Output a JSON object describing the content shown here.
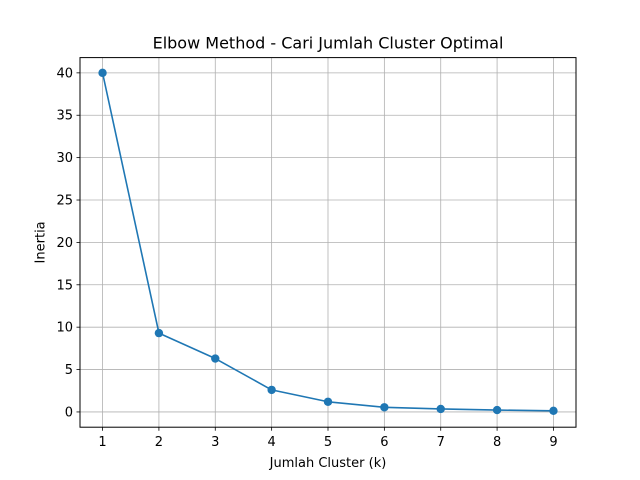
{
  "chart_data": {
    "type": "line",
    "title": "Elbow Method - Cari Jumlah Cluster Optimal",
    "xlabel": "Jumlah Cluster (k)",
    "ylabel": "Inertia",
    "x": [
      1,
      2,
      3,
      4,
      5,
      6,
      7,
      8,
      9
    ],
    "series": [
      {
        "values": [
          40.0,
          9.3,
          6.3,
          2.6,
          1.2,
          0.55,
          0.35,
          0.22,
          0.13
        ],
        "color": "#1f77b4",
        "marker": "circle"
      }
    ],
    "xticks": [
      1,
      2,
      3,
      4,
      5,
      6,
      7,
      8,
      9
    ],
    "yticks": [
      0,
      5,
      10,
      15,
      20,
      25,
      30,
      35,
      40
    ],
    "xlim": [
      0.6,
      9.4
    ],
    "ylim": [
      -1.8,
      41.8
    ],
    "grid": true,
    "grid_color": "#b0b0b0"
  }
}
